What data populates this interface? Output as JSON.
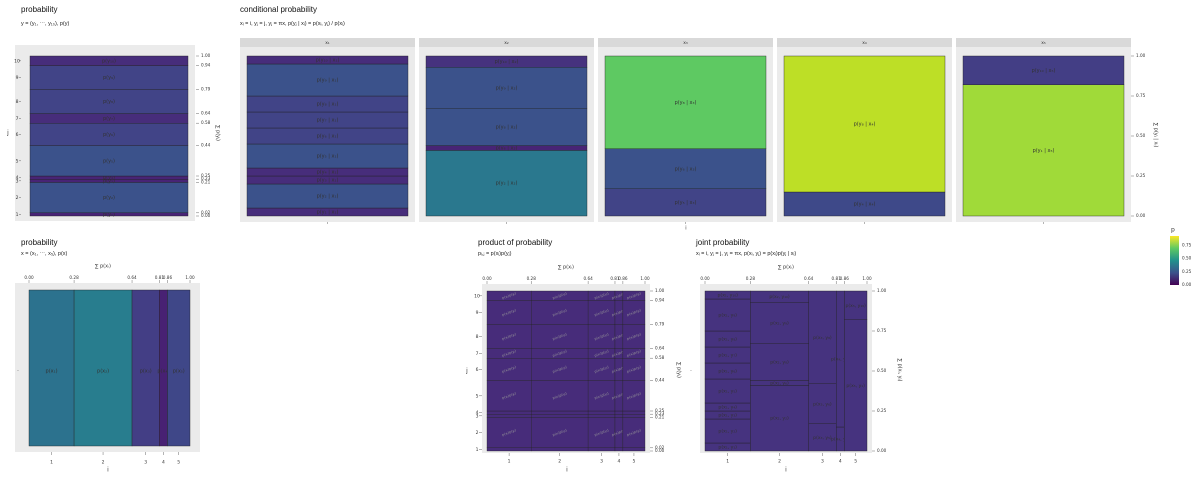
{
  "panels": {
    "marg_y": {
      "title": "probability",
      "subtitle": "y = (y₁, ⋯, y₁₀), p(y)"
    },
    "cond": {
      "title": "conditional probability",
      "subtitle": "xᵢ = i, yⱼ = j, yⱼ = πx, p(yⱼ | xᵢ) = p(xᵢ, yⱼ) / p(xᵢ)"
    },
    "marg_x": {
      "title": "probability",
      "subtitle": "x = (x₁, ⋯, x₅), p(x)"
    },
    "product": {
      "title": "product of probability",
      "subtitle": "pᵢ,ⱼ = p(xᵢ)p(yⱼ)"
    },
    "joint": {
      "title": "joint probability",
      "subtitle": "xᵢ = i, yⱼ = j, yⱼ = πx, p(xᵢ, yⱼ) = p(xᵢ)p(yⱼ | xᵢ)"
    }
  },
  "chart_data": [
    {
      "type": "bar",
      "title": "probability",
      "subtitle": "y = (y₁, ⋯, y₁₀), p(y)",
      "xlabel": "",
      "ylabel": "j",
      "y2label": "∑ p(yⱼ)",
      "categories": [
        "1",
        "2",
        "3",
        "4",
        "5",
        "6",
        "7",
        "8",
        "9",
        "10"
      ],
      "labels": [
        "p(y₁)",
        "p(y₂)",
        "p(y₃)",
        "p(y₄)",
        "p(y₅)",
        "p(y₆)",
        "p(y₇)",
        "p(y₈)",
        "p(y₉)",
        "p(y₁₀)"
      ],
      "values": [
        0.02,
        0.19,
        0.02,
        0.02,
        0.19,
        0.14,
        0.06,
        0.15,
        0.15,
        0.06
      ],
      "colors": [
        "#482475",
        "#3b528b",
        "#482475",
        "#482475",
        "#3b528b",
        "#414487",
        "#472d7b",
        "#414487",
        "#414487",
        "#472d7b"
      ],
      "cumulative_ticks": [
        "0.00",
        "0.02",
        "0.21",
        "0.23",
        "0.25",
        "0.44",
        "0.58",
        "0.64",
        "0.79",
        "0.94",
        "1.00"
      ],
      "cumulative_values": [
        0,
        0.02,
        0.21,
        0.23,
        0.25,
        0.44,
        0.58,
        0.64,
        0.79,
        0.94,
        1.0
      ],
      "ylim": [
        0,
        1
      ]
    },
    {
      "type": "bar",
      "title": "conditional probability",
      "subtitle": "xᵢ = i, yⱼ = j, yⱼ = πx, p(yⱼ | xᵢ) = p(xᵢ, yⱼ) / p(xᵢ)",
      "xlabel": "i",
      "ylabel": "∑ p(yⱼ | xᵢ)",
      "facets": [
        "x₁",
        "x₂",
        "x₃",
        "x₄",
        "x₅"
      ],
      "series": [
        {
          "facet": "x₁",
          "labels": [
            "p(y₁ | x₁)",
            "p(y₂ | x₁)",
            "p(y₃ | x₁)",
            "p(y₄ | x₁)",
            "p(y₅ | x₁)",
            "p(y₆ | x₁)",
            "p(y₇ | x₁)",
            "p(y₈ | x₁)",
            "p(y₉ | x₁)",
            "p(y₁₀ | x₁)"
          ],
          "values": [
            0.05,
            0.15,
            0.05,
            0.05,
            0.15,
            0.1,
            0.1,
            0.1,
            0.2,
            0.05
          ],
          "colors": [
            "#472d7b",
            "#3b528b",
            "#472d7b",
            "#472d7b",
            "#3b528b",
            "#414487",
            "#414487",
            "#414487",
            "#3b528b",
            "#472d7b"
          ]
        },
        {
          "facet": "x₂",
          "labels": [
            "p(y₂ | x₂)",
            "p(y₆ | x₂)",
            "p(y₈ | x₂)",
            "p(y₉ | x₂)",
            "p(y₁₀ | x₂)"
          ],
          "values": [
            0.41,
            0.03,
            0.23,
            0.26,
            0.07
          ],
          "colors": [
            "#2a788e",
            "#482475",
            "#3b528b",
            "#3b528b",
            "#46327e"
          ]
        },
        {
          "facet": "x₃",
          "labels": [
            "p(y₅ | x₃)",
            "p(y₆ | x₃)",
            "p(y₈ | x₃)"
          ],
          "values": [
            0.17,
            0.25,
            0.58
          ],
          "colors": [
            "#414487",
            "#3b528b",
            "#5ec962"
          ]
        },
        {
          "facet": "x₄",
          "labels": [
            "p(y₄ | x₄)",
            "p(y₈ | x₄)"
          ],
          "values": [
            0.15,
            0.85
          ],
          "colors": [
            "#3e4989",
            "#bddf26"
          ]
        },
        {
          "facet": "x₅",
          "labels": [
            "p(y₁ | x₅)",
            "p(y₁₀ | x₅)"
          ],
          "values": [
            0.82,
            0.18
          ],
          "colors": [
            "#a0da39",
            "#433e85"
          ]
        }
      ],
      "yticks": [
        "0.00",
        "0.25",
        "0.50",
        "0.75",
        "1.00"
      ],
      "ylim": [
        0,
        1
      ]
    },
    {
      "type": "bar",
      "title": "probability",
      "subtitle": "x = (x₁, ⋯, x₅), p(x)",
      "xlabel": "i",
      "x2label": "∑ p(xᵢ)",
      "categories": [
        "1",
        "2",
        "3",
        "4",
        "5"
      ],
      "labels": [
        "p(x₁)",
        "p(x₂)",
        "p(x₃)",
        "p(x₄)",
        "p(x₅)"
      ],
      "values": [
        0.28,
        0.36,
        0.17,
        0.05,
        0.14
      ],
      "colors": [
        "#2c728e",
        "#287d8e",
        "#433e85",
        "#482173",
        "#3f4788"
      ],
      "cumulative_ticks": [
        "0.00",
        "0.28",
        "0.64",
        "0.81",
        "0.86",
        "1.00"
      ],
      "cumulative_values": [
        0,
        0.28,
        0.64,
        0.81,
        0.86,
        1.0
      ],
      "xlim": [
        0,
        1
      ]
    },
    {
      "type": "heatmap",
      "title": "product of probability",
      "subtitle": "pᵢ,ⱼ = p(xᵢ)p(yⱼ)",
      "xlabel": "i",
      "ylabel": "j",
      "x2label": "∑ p(xᵢ)",
      "y2label": "∑ p(yⱼ)",
      "cell_label": "p(xᵢ)p(yⱼ)",
      "x_widths": [
        0.28,
        0.36,
        0.17,
        0.05,
        0.14
      ],
      "y_heights": [
        0.02,
        0.19,
        0.02,
        0.02,
        0.19,
        0.14,
        0.06,
        0.15,
        0.15,
        0.06
      ],
      "x_categories": [
        "1",
        "2",
        "3",
        "4",
        "5"
      ],
      "y_categories": [
        "1",
        "2",
        "3",
        "4",
        "5",
        "6",
        "7",
        "8",
        "9",
        "10"
      ],
      "x_cumulative_ticks": [
        "0.00",
        "0.28",
        "0.64",
        "0.81",
        "0.86",
        "1.00"
      ],
      "y_cumulative_ticks": [
        "0.00",
        "0.02",
        "0.21",
        "0.23",
        "0.25",
        "0.44",
        "0.58",
        "0.64",
        "0.79",
        "0.94",
        "1.00"
      ],
      "fill": "#472c7a"
    },
    {
      "type": "heatmap",
      "title": "joint probability",
      "subtitle": "xᵢ = i, yⱼ = j, yⱼ = πx, p(xᵢ, yⱼ) = p(xᵢ)p(yⱼ | xᵢ)",
      "xlabel": "i",
      "x2label": "∑ p(xᵢ)",
      "y2label": "∑ p(xᵢ, yⱼ)",
      "x_categories": [
        "1",
        "2",
        "3",
        "4",
        "5"
      ],
      "x_cumulative_ticks": [
        "0.00",
        "0.28",
        "0.64",
        "0.81",
        "0.86",
        "1.00"
      ],
      "y_cumulative_ticks": [
        "0.00",
        "0.25",
        "0.50",
        "0.75",
        "1.00"
      ],
      "columns": [
        {
          "x": 1,
          "width": 0.28,
          "labels": [
            "p(x₁, y₁)",
            "p(x₁, y₂)",
            "p(x₁, y₃)",
            "p(x₁, y₄)",
            "p(x₁, y₅)",
            "p(x₁, y₆)",
            "p(x₁, y₇)",
            "p(x₁, y₈)",
            "p(x₁, y₉)",
            "p(x₁, y₁₀)"
          ],
          "values": [
            0.05,
            0.15,
            0.05,
            0.05,
            0.15,
            0.1,
            0.1,
            0.1,
            0.2,
            0.05
          ]
        },
        {
          "x": 2,
          "width": 0.36,
          "labels": [
            "p(x₂, y₂)",
            "p(x₂, y₆)",
            "p(x₂, y₈)",
            "p(x₂, y₉)",
            "p(x₂, y₁₀)"
          ],
          "values": [
            0.41,
            0.03,
            0.23,
            0.26,
            0.07
          ]
        },
        {
          "x": 3,
          "width": 0.17,
          "labels": [
            "p(x₃, y₅)",
            "p(x₃, y₆)",
            "p(x₃, y₈)"
          ],
          "values": [
            0.17,
            0.25,
            0.58
          ]
        },
        {
          "x": 4,
          "width": 0.05,
          "labels": [
            "p(x₄, y₄)",
            "p(x₄, y₈)"
          ],
          "values": [
            0.15,
            0.85
          ]
        },
        {
          "x": 5,
          "width": 0.14,
          "labels": [
            "p(x₅, y₁)",
            "p(x₅, y₁₀)"
          ],
          "values": [
            0.82,
            0.18
          ]
        }
      ],
      "fill": "#46337f"
    }
  ],
  "legend": {
    "title": "p",
    "ticks": [
      "0.00",
      "0.25",
      "0.50",
      "0.75"
    ],
    "stops": [
      "#440154",
      "#3b528b",
      "#21918c",
      "#5ec962",
      "#fde725"
    ]
  }
}
